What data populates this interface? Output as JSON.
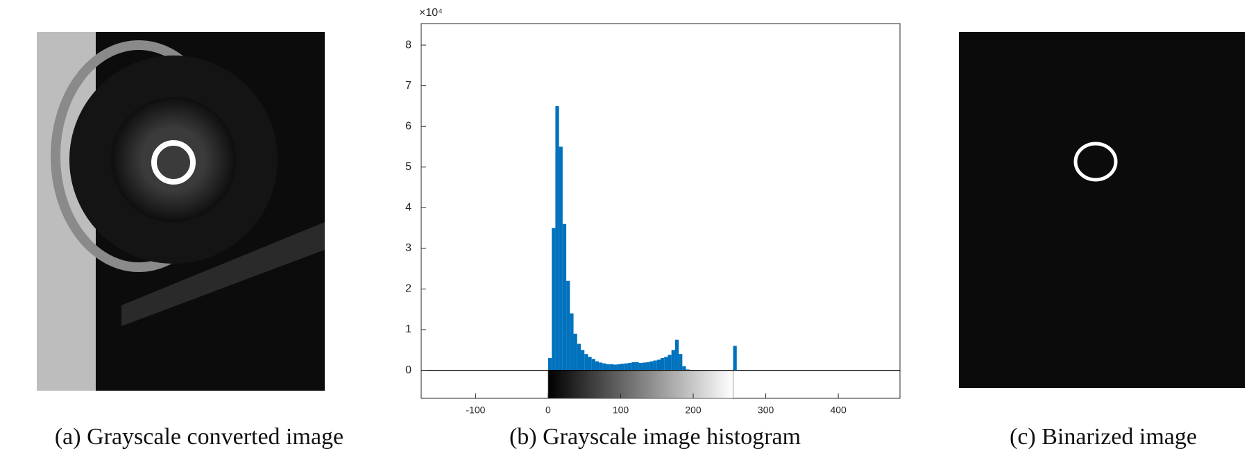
{
  "chart_data": {
    "type": "histogram",
    "axis_multiplier": "×10⁴",
    "bins": [
      0,
      5,
      10,
      15,
      20,
      25,
      30,
      35,
      40,
      45,
      50,
      55,
      60,
      65,
      70,
      75,
      80,
      85,
      90,
      95,
      100,
      105,
      110,
      115,
      120,
      125,
      130,
      135,
      140,
      145,
      150,
      155,
      160,
      165,
      170,
      175,
      180,
      185,
      190,
      195,
      200,
      205,
      210,
      215,
      220,
      225,
      230,
      235,
      240,
      245,
      250,
      255,
      260
    ],
    "counts": [
      0.3,
      3.5,
      6.5,
      5.5,
      3.6,
      2.2,
      1.4,
      0.9,
      0.65,
      0.5,
      0.4,
      0.33,
      0.28,
      0.22,
      0.19,
      0.17,
      0.15,
      0.15,
      0.14,
      0.15,
      0.16,
      0.17,
      0.18,
      0.2,
      0.2,
      0.18,
      0.19,
      0.2,
      0.22,
      0.24,
      0.26,
      0.3,
      0.33,
      0.38,
      0.5,
      0.75,
      0.4,
      0.1,
      0.02,
      0,
      0,
      0,
      0,
      0,
      0,
      0,
      0,
      0,
      0,
      0,
      0,
      0.6
    ],
    "color": "#0072bd",
    "colorbar": [
      0,
      255
    ],
    "xlim": [
      -175,
      485
    ],
    "xticks": [
      -100,
      0,
      100,
      200,
      300,
      400
    ],
    "ylim": [
      -0.69,
      8.53
    ],
    "yticks": [
      0,
      1,
      2,
      3,
      4,
      5,
      6,
      7,
      8
    ]
  },
  "captions": [
    "(a) Grayscale converted image",
    "(b) Grayscale image histogram",
    "(c) Binarized image"
  ]
}
